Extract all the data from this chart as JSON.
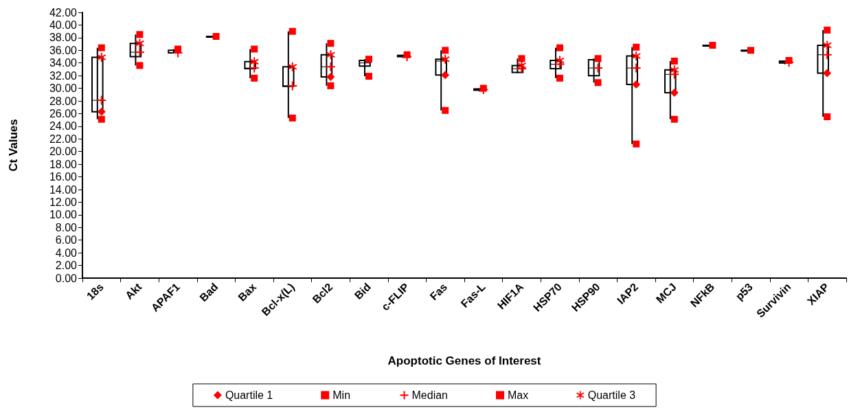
{
  "chart_data": {
    "type": "scatter",
    "xlabel": "Apoptotic Genes of Interest",
    "ylabel": "Ct Values",
    "categories": [
      "18s",
      "Akt",
      "APAF1",
      "Bad",
      "Bax",
      "Bcl-x(L)",
      "Bcl2",
      "Bid",
      "c-FLIP",
      "Fas",
      "Fas-L",
      "HIF1A",
      "HSP70",
      "HSP90",
      "IAP2",
      "MCJ",
      "NFkB",
      "p53",
      "Survivin",
      "XIAP"
    ],
    "ylim": [
      0,
      42
    ],
    "yticks": [
      {
        "value": 0,
        "label": "0.00"
      },
      {
        "value": 2,
        "label": "2.00"
      },
      {
        "value": 4,
        "label": "4.00"
      },
      {
        "value": 6,
        "label": "6.00"
      },
      {
        "value": 8,
        "label": "8.00"
      },
      {
        "value": 10,
        "label": "10.00"
      },
      {
        "value": 12,
        "label": "12.00"
      },
      {
        "value": 14,
        "label": "14.00"
      },
      {
        "value": 16,
        "label": "16.00"
      },
      {
        "value": 18,
        "label": "18.00"
      },
      {
        "value": 20,
        "label": "20.00"
      },
      {
        "value": 22,
        "label": "22.00"
      },
      {
        "value": 24,
        "label": "24.00"
      },
      {
        "value": 26,
        "label": "26.00"
      },
      {
        "value": 28,
        "label": "28.00"
      },
      {
        "value": 30,
        "label": "30.00"
      },
      {
        "value": 32,
        "label": "32.00"
      },
      {
        "value": 34,
        "label": "34.00"
      },
      {
        "value": 36,
        "label": "36.00"
      },
      {
        "value": 38,
        "label": "38.00"
      },
      {
        "value": 40,
        "label": "40.00"
      },
      {
        "value": 42,
        "label": "42.00"
      }
    ],
    "grid": false,
    "legend": "bottom",
    "series": [
      {
        "type": "box",
        "color": "#000000",
        "boxes": [
          {
            "low": 25.1,
            "q1": 26.3,
            "median": 28.1,
            "q3": 34.9,
            "high": 36.4
          },
          {
            "low": 33.6,
            "q1": 35.0,
            "median": 35.7,
            "q3": 37.1,
            "high": 38.5
          },
          {
            "low": 35.5,
            "q1": 35.6,
            "median": 35.6,
            "q3": 36.0,
            "high": 36.2
          },
          {
            "low": 38.2,
            "q1": 38.2,
            "median": 38.2,
            "q3": 38.2,
            "high": 38.2
          },
          {
            "low": 31.6,
            "q1": 33.1,
            "median": 33.2,
            "q3": 34.2,
            "high": 36.2
          },
          {
            "low": 25.3,
            "q1": 30.3,
            "median": 30.4,
            "q3": 33.4,
            "high": 39.0
          },
          {
            "low": 30.4,
            "q1": 31.8,
            "median": 33.4,
            "q3": 35.3,
            "high": 37.1
          },
          {
            "low": 31.9,
            "q1": 33.5,
            "median": 34.0,
            "q3": 34.4,
            "high": 34.6
          },
          {
            "low": 34.8,
            "q1": 35.0,
            "median": 35.0,
            "q3": 35.2,
            "high": 35.3
          },
          {
            "low": 26.5,
            "q1": 32.1,
            "median": 34.3,
            "q3": 34.6,
            "high": 36.0
          },
          {
            "low": 29.5,
            "q1": 29.7,
            "median": 29.8,
            "q3": 29.9,
            "high": 30.0
          },
          {
            "low": 32.4,
            "q1": 32.5,
            "median": 33.1,
            "q3": 33.6,
            "high": 34.7
          },
          {
            "low": 31.6,
            "q1": 33.1,
            "median": 33.8,
            "q3": 34.4,
            "high": 36.4
          },
          {
            "low": 30.9,
            "q1": 32.0,
            "median": 33.2,
            "q3": 34.5,
            "high": 34.7
          },
          {
            "low": 21.2,
            "q1": 30.6,
            "median": 33.2,
            "q3": 35.1,
            "high": 36.5
          },
          {
            "low": 25.1,
            "q1": 29.3,
            "median": 32.2,
            "q3": 32.9,
            "high": 34.3
          },
          {
            "low": 36.8,
            "q1": 36.8,
            "median": 36.8,
            "q3": 36.8,
            "high": 36.8
          },
          {
            "low": 36.0,
            "q1": 36.0,
            "median": 36.0,
            "q3": 36.0,
            "high": 36.0
          },
          {
            "low": 33.8,
            "q1": 34.0,
            "median": 34.1,
            "q3": 34.3,
            "high": 34.4
          },
          {
            "low": 25.5,
            "q1": 32.4,
            "median": 35.3,
            "q3": 36.8,
            "high": 39.2
          }
        ]
      },
      {
        "name": "Quartile 1",
        "color": "#ff0000",
        "marker": "diamond",
        "values": [
          26.3,
          null,
          null,
          null,
          null,
          null,
          31.8,
          null,
          null,
          32.1,
          null,
          null,
          null,
          null,
          30.6,
          29.3,
          null,
          null,
          null,
          32.4
        ]
      },
      {
        "name": "Min",
        "color": "#ff0000",
        "marker": "square",
        "values": [
          25.1,
          33.6,
          null,
          null,
          31.6,
          25.3,
          30.4,
          31.9,
          null,
          26.5,
          null,
          null,
          31.6,
          30.9,
          21.2,
          25.1,
          null,
          null,
          null,
          25.5
        ]
      },
      {
        "name": "Median",
        "color": "#ff0000",
        "marker": "cross",
        "values": [
          28.1,
          35.7,
          35.6,
          null,
          33.2,
          30.4,
          33.4,
          null,
          35.0,
          null,
          29.8,
          33.1,
          33.8,
          33.2,
          33.2,
          32.2,
          null,
          null,
          34.1,
          35.3
        ]
      },
      {
        "name": "Max",
        "color": "#ff0000",
        "marker": "square",
        "values": [
          36.4,
          38.5,
          36.2,
          38.2,
          36.2,
          39.0,
          37.1,
          34.6,
          35.3,
          36.0,
          30.0,
          34.7,
          36.4,
          34.7,
          36.5,
          34.3,
          36.8,
          36.0,
          34.4,
          39.2
        ]
      },
      {
        "name": "Quartile 3",
        "color": "#ff0000",
        "marker": "star",
        "values": [
          34.9,
          37.1,
          null,
          null,
          34.2,
          33.4,
          35.3,
          null,
          null,
          34.6,
          null,
          33.6,
          34.4,
          null,
          35.1,
          32.9,
          null,
          null,
          null,
          36.8
        ]
      }
    ]
  }
}
